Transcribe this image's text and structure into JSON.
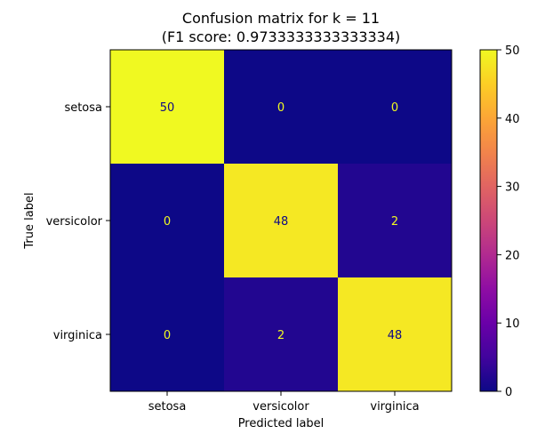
{
  "chart_data": {
    "type": "heatmap",
    "title_line1": "Confusion matrix for k = 11",
    "title_line2": "(F1 score: 0.9733333333333334)",
    "xlabel": "Predicted label",
    "ylabel": "True label",
    "x_categories": [
      "setosa",
      "versicolor",
      "virginica"
    ],
    "y_categories": [
      "setosa",
      "versicolor",
      "virginica"
    ],
    "values": [
      [
        50,
        0,
        0
      ],
      [
        0,
        48,
        2
      ],
      [
        0,
        2,
        48
      ]
    ],
    "colormap": "plasma",
    "vmin": 0,
    "vmax": 50,
    "colorbar_ticks": [
      "0",
      "10",
      "20",
      "30",
      "40",
      "50"
    ],
    "annotation_color_on_dark": "#f0f921",
    "annotation_color_on_light": "#0d0887"
  }
}
